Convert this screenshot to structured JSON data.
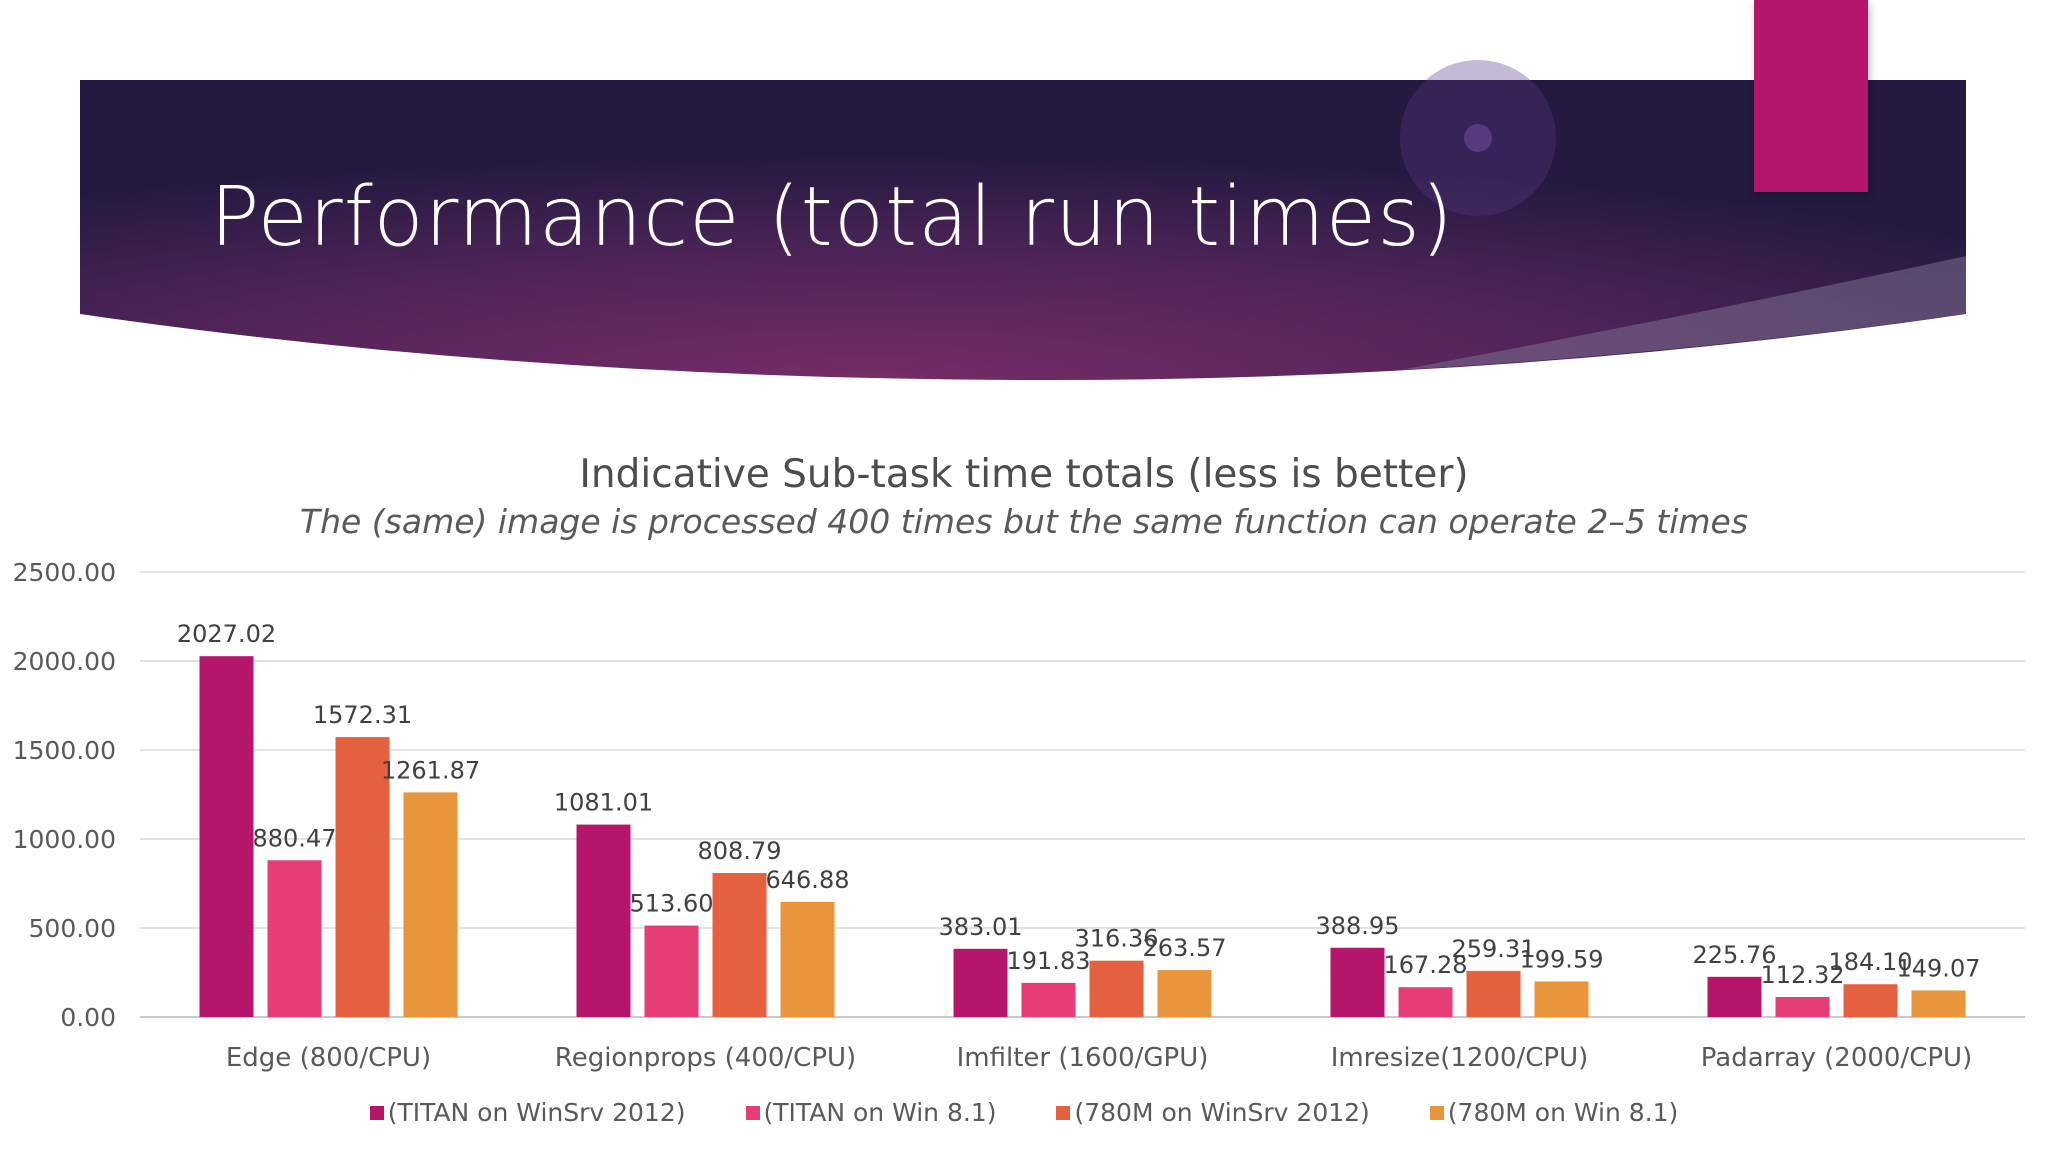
{
  "slide": {
    "title": "Performance (total run times)",
    "colors": {
      "banner_dark": "#2b1c45",
      "banner_mid": "#6b2a5e",
      "accent": "#b5156a"
    }
  },
  "chart_data": {
    "type": "bar",
    "title": "Indicative Sub-task time totals (less is better)",
    "subtitle": "The (same) image is processed 400 times but the same function can operate 2–5 times",
    "categories": [
      "Edge (800/CPU)",
      "Regionprops (400/CPU)",
      "Imfilter  (1600/GPU)",
      "Imresize(1200/CPU)",
      "Padarray (2000/CPU)"
    ],
    "series": [
      {
        "name": "(TITAN on WinSrv 2012)",
        "color": "#b5156a",
        "values": [
          2027.02,
          1081.01,
          383.01,
          388.95,
          225.76
        ]
      },
      {
        "name": "(TITAN on Win 8.1)",
        "color": "#e63d74",
        "values": [
          880.47,
          513.6,
          191.83,
          167.28,
          112.32
        ]
      },
      {
        "name": "(780M on WinSrv 2012)",
        "color": "#e5603f",
        "values": [
          1572.31,
          808.79,
          316.36,
          259.31,
          184.1
        ]
      },
      {
        "name": "(780M on Win 8.1)",
        "color": "#e8953b",
        "values": [
          1261.87,
          646.88,
          263.57,
          199.59,
          149.07
        ]
      }
    ],
    "ylim": [
      0,
      2500
    ],
    "yticks": [
      "0.00",
      "500.00",
      "1000.00",
      "1500.00",
      "2000.00",
      "2500.00"
    ],
    "grid": true,
    "legend": "bottom",
    "xlabel": "",
    "ylabel": ""
  }
}
